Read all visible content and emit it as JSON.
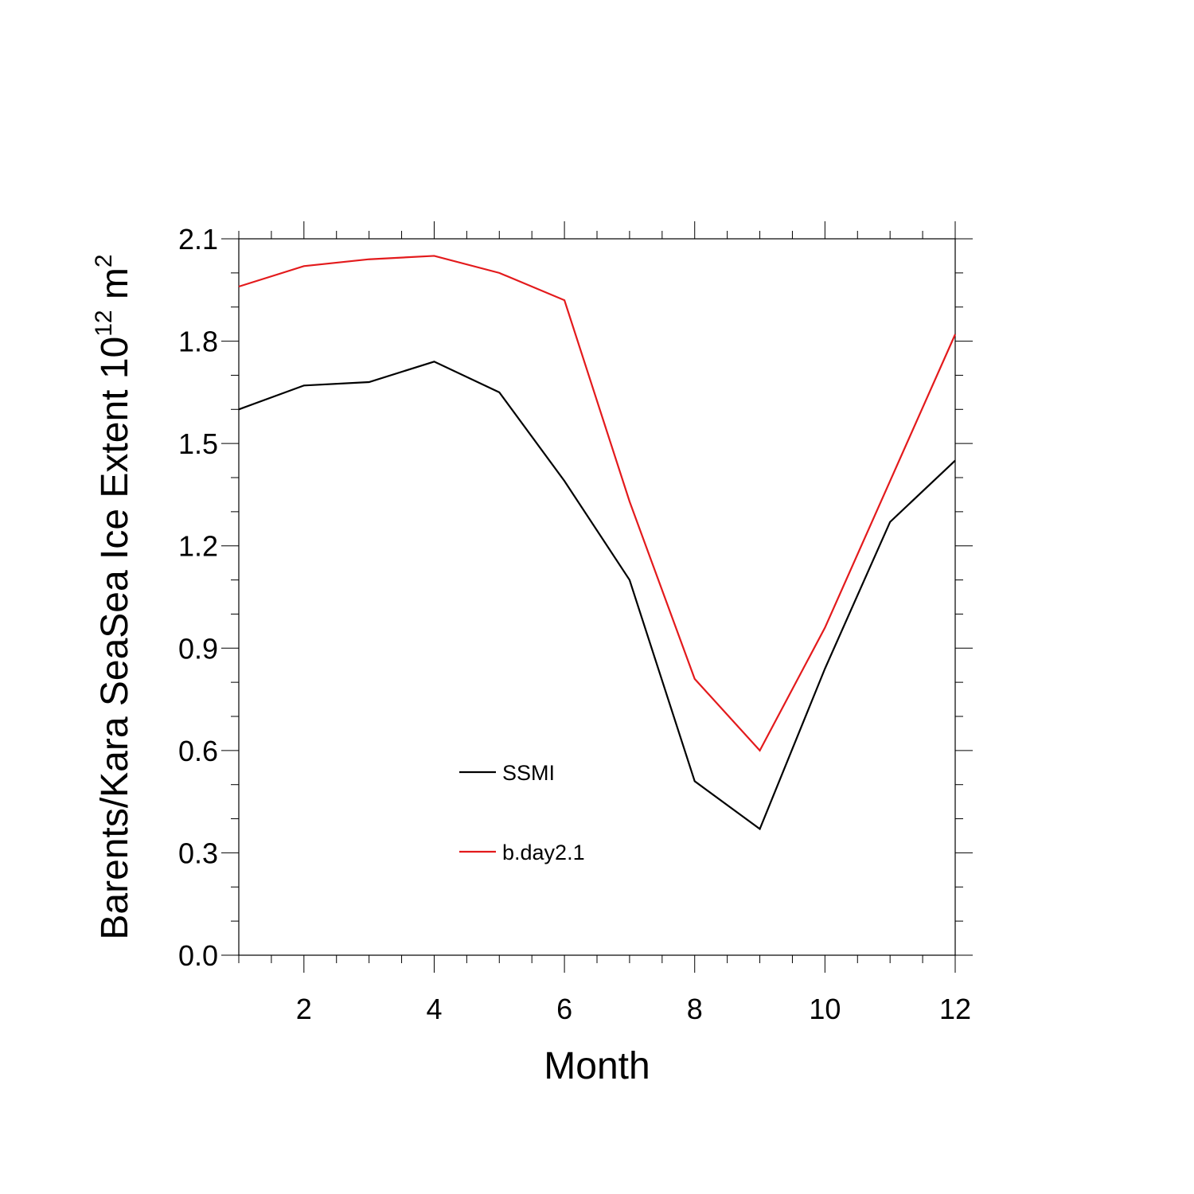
{
  "chart_data": {
    "type": "line",
    "title": "",
    "xlabel": "Month",
    "ylabel": {
      "main": "Barents/Kara SeaSea Ice Extent 10",
      "superscript_1": "12",
      "unit": " m",
      "superscript_2": "2"
    },
    "xlim": [
      1,
      12
    ],
    "ylim": [
      0,
      2.1
    ],
    "xticks": [
      2,
      4,
      6,
      8,
      10,
      12
    ],
    "xtick_labels": [
      "2",
      "4",
      "6",
      "8",
      "10",
      "12"
    ],
    "yticks": [
      0.0,
      0.3,
      0.6,
      0.9,
      1.2,
      1.5,
      1.8,
      2.1
    ],
    "ytick_labels": [
      "0.0",
      "0.3",
      "0.6",
      "0.9",
      "1.2",
      "1.5",
      "1.8",
      "2.1"
    ],
    "x": [
      1,
      2,
      3,
      4,
      5,
      6,
      7,
      8,
      9,
      10,
      11,
      12
    ],
    "series": [
      {
        "name": "SSMI",
        "color": "#000000",
        "values": [
          1.6,
          1.67,
          1.68,
          1.74,
          1.65,
          1.39,
          1.1,
          0.51,
          0.37,
          0.84,
          1.27,
          1.45
        ]
      },
      {
        "name": "b.day2.1",
        "color": "#e31a1c",
        "values": [
          1.96,
          2.02,
          2.04,
          2.05,
          2.0,
          1.92,
          1.33,
          0.81,
          0.6,
          0.96,
          1.39,
          1.82
        ]
      }
    ],
    "grid": false,
    "legend_position": "lower-center"
  }
}
